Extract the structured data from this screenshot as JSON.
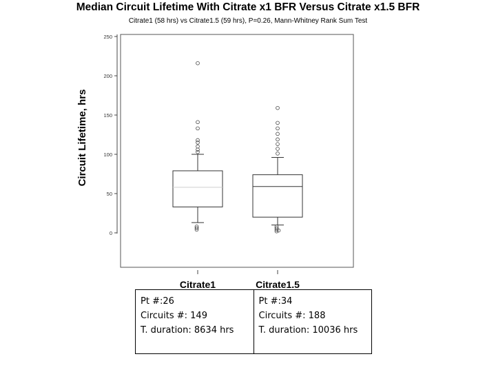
{
  "chart_data": {
    "type": "box",
    "title": "Median Circuit Lifetime With Citrate x1 BFR Versus Citrate x1.5 BFR",
    "subtitle": "Citrate1 (58 hrs) vs Citrate1.5 (59 hrs), P=0.26, Mann-Whitney Rank Sum Test",
    "xlabel": "",
    "ylabel": "Circuit Lifetime, hrs",
    "ylim": [
      -45,
      250
    ],
    "yticks": [
      "0",
      "50",
      "100",
      "150",
      "200",
      "250"
    ],
    "categories": [
      "Citrate1",
      "Citrate1.5"
    ],
    "series": [
      {
        "q1": 33,
        "median": 58,
        "q3": 79,
        "whisker_low": 13,
        "whisker_high": 100,
        "outliers": [
          216,
          141,
          133,
          118,
          115,
          110,
          106,
          103,
          8,
          6,
          4
        ]
      },
      {
        "q1": 20,
        "median": 59,
        "q3": 74,
        "whisker_low": 10,
        "whisker_high": 96,
        "outliers": [
          159,
          140,
          133,
          126,
          119,
          113,
          107,
          101,
          8,
          6,
          4,
          3,
          2
        ]
      }
    ],
    "grid": false
  },
  "info": [
    {
      "pt": "Pt #:26",
      "circuits": "Circuits #: 149",
      "duration": "T. duration: 8634 hrs"
    },
    {
      "pt": "Pt #:34",
      "circuits": "Circuits #: 188",
      "duration": "T. duration: 10036 hrs"
    }
  ]
}
